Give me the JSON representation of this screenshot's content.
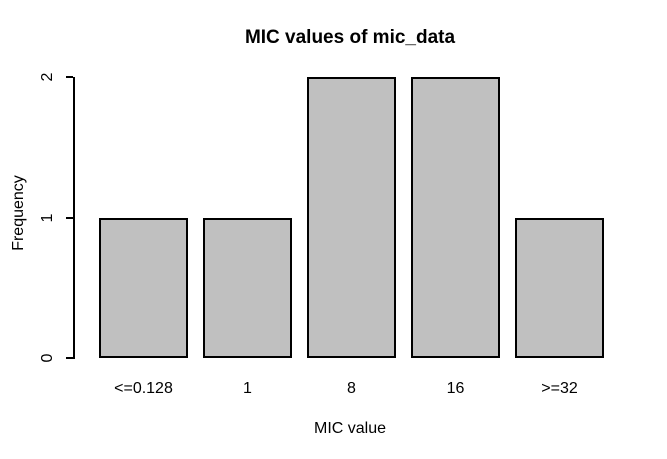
{
  "chart_data": {
    "type": "bar",
    "title": "MIC values of mic_data",
    "xlabel": "MIC value",
    "ylabel": "Frequency",
    "categories": [
      "<=0.128",
      "1",
      "8",
      "16",
      ">=32"
    ],
    "values": [
      1,
      1,
      2,
      2,
      1
    ],
    "ylim": [
      0,
      2
    ],
    "yticks": [
      0,
      1,
      2
    ],
    "grid": false,
    "legend_position": "none",
    "bar_fill_color": "#c0c0c0",
    "bar_border_color": "#000000",
    "background_color": "#ffffff",
    "text_color": "#000000"
  }
}
